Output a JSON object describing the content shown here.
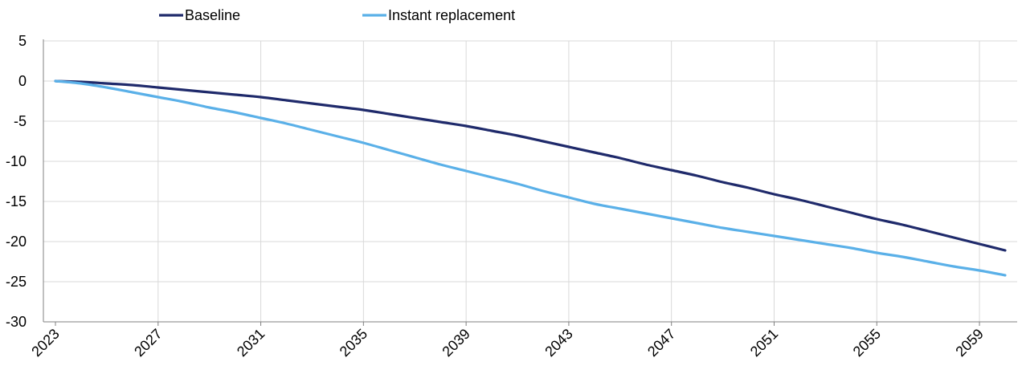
{
  "chart_data": {
    "type": "line",
    "title": "",
    "xlabel": "",
    "ylabel": "",
    "ylim": [
      -30,
      5
    ],
    "yticks": [
      5,
      0,
      -5,
      -10,
      -15,
      -20,
      -25,
      -30
    ],
    "xlim": [
      2023,
      2060
    ],
    "xticks": [
      2023,
      2027,
      2031,
      2035,
      2039,
      2043,
      2047,
      2051,
      2055,
      2059
    ],
    "grid": "vertical and horizontal gridlines",
    "legend": "top-left",
    "x": [
      2023,
      2024,
      2025,
      2026,
      2027,
      2028,
      2029,
      2030,
      2031,
      2032,
      2033,
      2034,
      2035,
      2036,
      2037,
      2038,
      2039,
      2040,
      2041,
      2042,
      2043,
      2044,
      2045,
      2046,
      2047,
      2048,
      2049,
      2050,
      2051,
      2052,
      2053,
      2054,
      2055,
      2056,
      2057,
      2058,
      2059,
      2060
    ],
    "series": [
      {
        "name": "Baseline",
        "color": "#1f2a6b",
        "values": [
          0,
          -0.1,
          -0.3,
          -0.5,
          -0.8,
          -1.1,
          -1.4,
          -1.7,
          -2.0,
          -2.4,
          -2.8,
          -3.2,
          -3.6,
          -4.1,
          -4.6,
          -5.1,
          -5.6,
          -6.2,
          -6.8,
          -7.5,
          -8.2,
          -8.9,
          -9.6,
          -10.4,
          -11.1,
          -11.8,
          -12.6,
          -13.3,
          -14.1,
          -14.8,
          -15.6,
          -16.4,
          -17.2,
          -17.9,
          -18.7,
          -19.5,
          -20.3,
          -21.1
        ]
      },
      {
        "name": "Instant replacement",
        "color": "#5ab0e8",
        "values": [
          0,
          -0.3,
          -0.8,
          -1.4,
          -2.0,
          -2.6,
          -3.3,
          -3.9,
          -4.6,
          -5.3,
          -6.1,
          -6.9,
          -7.7,
          -8.6,
          -9.5,
          -10.4,
          -11.2,
          -12.0,
          -12.8,
          -13.7,
          -14.5,
          -15.3,
          -15.9,
          -16.5,
          -17.1,
          -17.7,
          -18.3,
          -18.8,
          -19.3,
          -19.8,
          -20.3,
          -20.8,
          -21.4,
          -21.9,
          -22.5,
          -23.1,
          -23.6,
          -24.2
        ]
      }
    ]
  }
}
